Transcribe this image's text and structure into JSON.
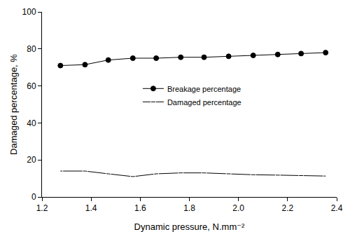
{
  "chart_data": {
    "type": "line",
    "x_label": "Dynamic pressure, N.mm⁻²",
    "y_label": "Damaged percentage, %",
    "x": [
      1.275,
      1.375,
      1.47,
      1.57,
      1.665,
      1.765,
      1.86,
      1.96,
      2.06,
      2.16,
      2.255,
      2.355
    ],
    "series": [
      {
        "name": "Breakage percentage",
        "color": "#000000",
        "marker": "circle",
        "values": [
          71,
          71.5,
          74,
          75,
          75,
          75.5,
          75.5,
          76,
          76.5,
          77,
          77.5,
          78
        ]
      },
      {
        "name": "Damaged percentage",
        "color": "#000000",
        "marker": "circle-open",
        "values": [
          14,
          14,
          12.5,
          11,
          12.5,
          13,
          13,
          12.5,
          12,
          11.8,
          11.5,
          11.3
        ]
      }
    ],
    "xlim": [
      1.2,
      2.4
    ],
    "xticks": [
      1.2,
      1.4,
      1.6,
      1.8,
      {
        "value": 2,
        "label": "2.0"
      },
      2.2,
      2.4
    ],
    "ylim": [
      0,
      100
    ],
    "yticks": [
      0,
      20,
      40,
      60,
      80,
      100
    ],
    "grid": false,
    "legend": "center"
  }
}
